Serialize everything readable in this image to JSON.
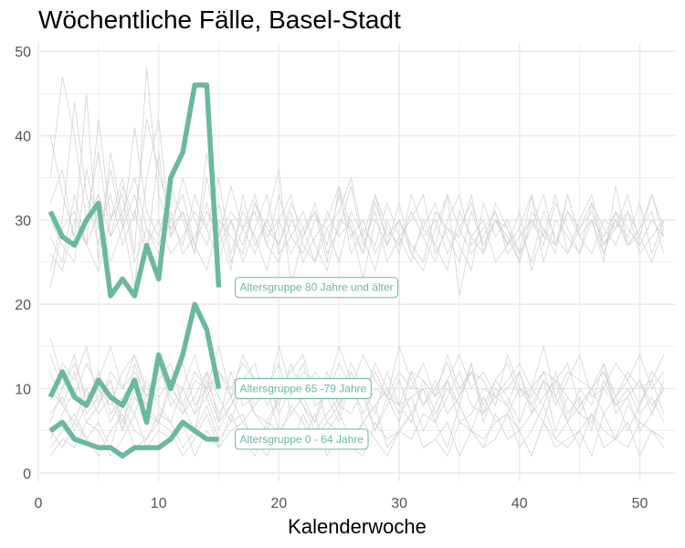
{
  "chart_data": {
    "type": "line",
    "title": "Wöchentliche Fälle, Basel-Stadt",
    "xlabel": "Kalenderwoche",
    "ylabel": "",
    "xlim": [
      0,
      53
    ],
    "ylim": [
      -1,
      51
    ],
    "x_ticks": [
      0,
      10,
      20,
      30,
      40,
      50
    ],
    "y_ticks": [
      0,
      10,
      20,
      30,
      40,
      50
    ],
    "grid": true,
    "highlight_color": "#6bb8a1",
    "background_line_color": "#d3d3d3",
    "highlight_series": [
      {
        "name": "Altersgruppe 80 Jahre und älter",
        "x": [
          1,
          2,
          3,
          4,
          5,
          6,
          7,
          8,
          9,
          10,
          11,
          12,
          13,
          14,
          15
        ],
        "values": [
          31,
          28,
          27,
          30,
          32,
          21,
          23,
          21,
          27,
          23,
          35,
          38,
          46,
          46,
          22
        ]
      },
      {
        "name": "Altersgruppe 65 -79 Jahre",
        "x": [
          1,
          2,
          3,
          4,
          5,
          6,
          7,
          8,
          9,
          10,
          11,
          12,
          13,
          14,
          15
        ],
        "values": [
          9,
          12,
          9,
          8,
          11,
          9,
          8,
          11,
          6,
          14,
          10,
          14,
          20,
          17,
          10
        ]
      },
      {
        "name": "Altersgruppe 0 - 64 Jahre",
        "x": [
          1,
          2,
          3,
          4,
          5,
          6,
          7,
          8,
          9,
          10,
          11,
          12,
          13,
          14,
          15
        ],
        "values": [
          5,
          6,
          4,
          3.5,
          3,
          3,
          2,
          3,
          3,
          3,
          4,
          6,
          5,
          4,
          4
        ]
      }
    ],
    "background_series": [
      {
        "x_start": 1,
        "values": [
          40,
          33,
          28,
          45,
          25,
          38,
          30,
          22,
          35,
          42,
          28,
          31,
          26,
          38,
          29,
          24,
          33,
          27,
          30,
          36,
          22,
          28,
          31,
          25,
          34,
          29,
          23,
          30,
          27,
          32,
          26,
          24,
          29,
          33,
          21,
          28,
          30,
          25,
          27,
          31,
          24,
          29,
          26,
          33,
          28,
          30,
          25,
          34,
          27,
          29,
          31,
          26
        ]
      },
      {
        "x_start": 1,
        "values": [
          35,
          47,
          40,
          30,
          38,
          28,
          34,
          30,
          42,
          36,
          30,
          27,
          33,
          29,
          35,
          26,
          31,
          28,
          24,
          30,
          33,
          27,
          25,
          29,
          31,
          35,
          28,
          24,
          30,
          26,
          33,
          29,
          27,
          24,
          31,
          28,
          26,
          32,
          29,
          25,
          30,
          28,
          33,
          26,
          29,
          31,
          27,
          30,
          28,
          32,
          26,
          30
        ]
      },
      {
        "x_start": 1,
        "values": [
          24,
          30,
          44,
          33,
          27,
          36,
          29,
          41,
          31,
          28,
          34,
          30,
          26,
          35,
          28,
          31,
          29,
          33,
          27,
          25,
          30,
          28,
          32,
          26,
          29,
          34,
          27,
          31,
          25,
          28,
          30,
          33,
          26,
          29,
          27,
          24,
          32,
          28,
          30,
          26,
          29,
          33,
          27,
          31,
          28,
          26,
          30,
          29,
          33,
          27,
          30,
          28
        ]
      },
      {
        "x_start": 1,
        "values": [
          28,
          25,
          33,
          27,
          42,
          30,
          35,
          26,
          48,
          33,
          29,
          31,
          27,
          24,
          30,
          28,
          26,
          32,
          29,
          27,
          31,
          25,
          28,
          30,
          34,
          26,
          29,
          27,
          32,
          28,
          25,
          30,
          27,
          33,
          29,
          26,
          28,
          31,
          27,
          29,
          33,
          25,
          30,
          28,
          26,
          32,
          29,
          27,
          31,
          28,
          25,
          29
        ]
      },
      {
        "x_start": 1,
        "values": [
          30,
          27,
          25,
          36,
          29,
          33,
          27,
          31,
          26,
          38,
          28,
          35,
          30,
          27,
          32,
          25,
          29,
          31,
          27,
          33,
          28,
          26,
          30,
          29,
          25,
          31,
          28,
          33,
          27,
          30,
          26,
          29,
          32,
          28,
          25,
          31,
          27,
          30,
          29,
          26,
          33,
          28,
          27,
          31,
          29,
          32,
          26,
          30,
          27,
          28,
          33,
          29
        ]
      },
      {
        "x_start": 1,
        "values": [
          22,
          29,
          31,
          27,
          24,
          30,
          33,
          25,
          29,
          27,
          31,
          26,
          28,
          32,
          27,
          30,
          25,
          29,
          33,
          26,
          28,
          31,
          27,
          24,
          30,
          29,
          26,
          32,
          28,
          30,
          27,
          25,
          31,
          29,
          28,
          33,
          26,
          30,
          27,
          29,
          25,
          31,
          28,
          26,
          30,
          33,
          27,
          29,
          31,
          26,
          28,
          30
        ]
      },
      {
        "x_start": 1,
        "values": [
          32,
          36,
          27,
          30,
          33,
          28,
          31,
          35,
          29,
          26,
          30,
          33,
          27,
          31,
          28,
          34,
          29,
          26,
          30,
          27,
          32,
          29,
          25,
          31,
          28,
          30,
          26,
          33,
          29,
          27,
          31,
          28,
          30,
          26,
          29,
          32,
          27,
          30,
          28,
          25,
          31,
          29,
          27,
          33,
          28,
          30,
          26,
          31,
          29,
          27,
          30,
          28
        ]
      },
      {
        "x_start": 1,
        "values": [
          26,
          24,
          30,
          27,
          31,
          25,
          29,
          33,
          27,
          30,
          26,
          28,
          31,
          29,
          25,
          30,
          27,
          32,
          28,
          30,
          26,
          29,
          31,
          27,
          33,
          28,
          30,
          26,
          29,
          27,
          31,
          28,
          25,
          30,
          33,
          27,
          29,
          31,
          26,
          28,
          30,
          27,
          32,
          29,
          26,
          30,
          28,
          31,
          27,
          29,
          33,
          28
        ]
      },
      {
        "x_start": 1,
        "values": [
          12,
          8,
          6,
          10,
          7,
          9,
          5,
          13,
          8,
          6,
          11,
          7,
          9,
          12,
          6,
          8,
          10,
          7,
          5,
          9,
          11,
          8,
          6,
          10,
          7,
          12,
          9,
          5,
          8,
          11,
          7,
          10,
          6,
          9,
          12,
          8,
          7,
          11,
          9,
          6,
          10,
          8,
          12,
          7,
          9,
          5,
          11,
          8,
          10,
          7,
          9,
          6
        ]
      },
      {
        "x_start": 1,
        "values": [
          6,
          10,
          14,
          8,
          12,
          7,
          9,
          11,
          6,
          13,
          8,
          10,
          7,
          12,
          9,
          6,
          11,
          8,
          10,
          13,
          7,
          9,
          6,
          12,
          8,
          11,
          7,
          10,
          9,
          6,
          12,
          8,
          11,
          7,
          9,
          13,
          6,
          10,
          8,
          12,
          7,
          9,
          11,
          6,
          10,
          8,
          13,
          7,
          9,
          11,
          8,
          10
        ]
      },
      {
        "x_start": 1,
        "values": [
          3,
          5,
          7,
          4,
          6,
          3,
          8,
          5,
          4,
          7,
          6,
          3,
          5,
          8,
          4,
          6,
          7,
          3,
          5,
          4,
          8,
          6,
          3,
          5,
          7,
          4,
          6,
          8,
          3,
          5,
          4,
          7,
          6,
          3,
          8,
          5,
          4,
          6,
          7,
          3,
          5,
          8,
          4,
          6,
          3,
          7,
          5,
          4,
          8,
          6,
          5,
          4
        ]
      },
      {
        "x_start": 1,
        "values": [
          9,
          13,
          11,
          15,
          8,
          12,
          10,
          14,
          9,
          11,
          13,
          8,
          12,
          10,
          15,
          9,
          11,
          13,
          8,
          10,
          12,
          14,
          9,
          11,
          8,
          13,
          10,
          12,
          9,
          15,
          11,
          8,
          10,
          13,
          9,
          12,
          11,
          8,
          14,
          10,
          9,
          12,
          11,
          13,
          8,
          10,
          12,
          9,
          11,
          14,
          10,
          12
        ]
      },
      {
        "x_start": 1,
        "values": [
          2,
          4,
          3,
          6,
          5,
          2,
          4,
          7,
          3,
          5,
          4,
          6,
          2,
          5,
          3,
          7,
          4,
          2,
          6,
          5,
          3,
          4,
          7,
          2,
          5,
          3,
          6,
          4,
          2,
          5,
          7,
          3,
          4,
          6,
          2,
          5,
          3,
          4,
          7,
          5,
          2,
          6,
          3,
          4,
          5,
          2,
          7,
          4,
          3,
          6,
          5,
          3
        ]
      },
      {
        "x_start": 1,
        "values": [
          16,
          11,
          9,
          13,
          10,
          8,
          12,
          14,
          10,
          9,
          11,
          13,
          8,
          10,
          12,
          9,
          14,
          11,
          10,
          8,
          13,
          9,
          12,
          10,
          15,
          11,
          9,
          13,
          10,
          8,
          12,
          11,
          9,
          14,
          10,
          12,
          8,
          11,
          13,
          9,
          10,
          12,
          8,
          11,
          14,
          9,
          10,
          13,
          11,
          8,
          12,
          10
        ]
      },
      {
        "x_start": 1,
        "values": [
          7,
          9,
          5,
          8,
          10,
          6,
          9,
          7,
          11,
          8,
          6,
          10,
          7,
          9,
          5,
          8,
          11,
          7,
          6,
          9,
          10,
          8,
          5,
          7,
          9,
          11,
          6,
          8,
          10,
          7,
          9,
          5,
          8,
          11,
          6,
          7,
          10,
          9,
          8,
          5,
          7,
          11,
          9,
          6,
          8,
          10,
          7,
          9,
          5,
          8,
          11,
          7
        ]
      },
      {
        "x_start": 1,
        "values": [
          4,
          7,
          10,
          6,
          8,
          11,
          5,
          9,
          7,
          6,
          10,
          8,
          5,
          11,
          7,
          9,
          6,
          8,
          10,
          5,
          7,
          9,
          11,
          6,
          8,
          7,
          10,
          5,
          9,
          8,
          6,
          11,
          7,
          10,
          8,
          5,
          9,
          6,
          7,
          10,
          8,
          11,
          5,
          9,
          7,
          6,
          10,
          8,
          9,
          5,
          7,
          11
        ]
      },
      {
        "x_start": 1,
        "values": [
          14,
          10,
          13,
          9,
          11,
          15,
          10,
          12,
          9,
          13,
          11,
          10,
          14,
          9,
          12,
          10,
          13,
          11,
          9,
          15,
          10,
          12,
          11,
          9,
          13,
          10,
          14,
          11,
          9,
          12,
          10,
          13,
          9,
          11,
          14,
          10,
          12,
          9,
          11,
          13,
          10,
          15,
          9,
          12,
          11,
          10,
          13,
          9,
          12,
          10,
          11,
          14
        ]
      },
      {
        "x_start": 1,
        "values": [
          5,
          3,
          6,
          4,
          2,
          5,
          7,
          3,
          4,
          6,
          5,
          2,
          4,
          7,
          3,
          5,
          6,
          4,
          2,
          5,
          3,
          7,
          4,
          6,
          5,
          3,
          2,
          6,
          4,
          5,
          7,
          3,
          4,
          2,
          6,
          5,
          3,
          7,
          4,
          5,
          2,
          6,
          4,
          3,
          5,
          7,
          3,
          4,
          6,
          2,
          5,
          4
        ]
      },
      {
        "x_start": 1,
        "values": [
          10,
          8,
          12,
          7,
          9,
          11,
          6,
          10,
          8,
          13,
          9,
          7,
          11,
          10,
          6,
          12,
          8,
          9,
          11,
          7,
          10,
          13,
          8,
          9,
          6,
          11,
          10,
          7,
          12,
          8,
          9,
          10,
          6,
          11,
          8,
          13,
          7,
          9,
          10,
          12,
          8,
          6,
          11,
          9,
          7,
          10,
          12,
          8,
          9,
          11,
          7,
          10
        ]
      }
    ]
  }
}
